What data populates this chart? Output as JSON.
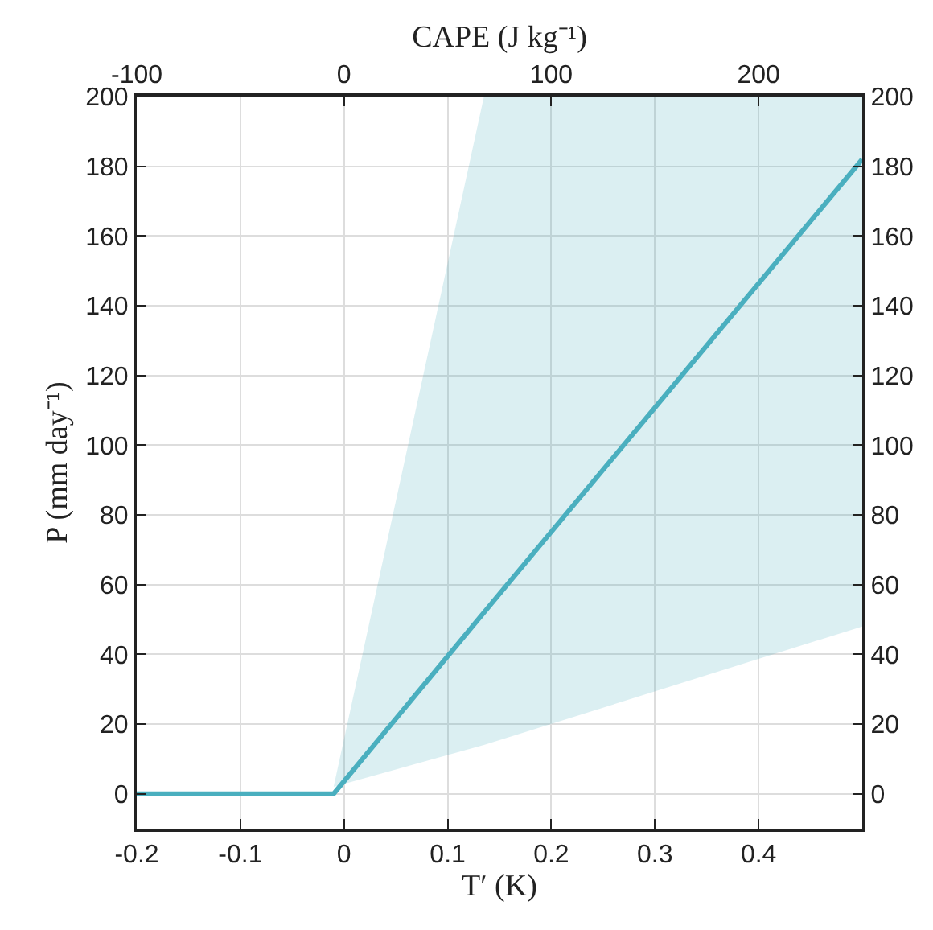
{
  "chart_data": {
    "type": "line",
    "xlabel": "T′ (K)",
    "ylabel": "P (mm day⁻¹)",
    "x2label": "CAPE (J kg⁻¹)",
    "series": [
      {
        "color": "#4aafbf",
        "x": [
          -0.2,
          -0.01,
          0.135,
          0.5
        ],
        "values": [
          0,
          0,
          52,
          182
        ],
        "lower": [
          null,
          2,
          14,
          48
        ],
        "upper": [
          null,
          2,
          200,
          200
        ]
      }
    ],
    "xlim": [
      -0.2,
      0.5
    ],
    "xticks": [
      {
        "value": -0.2,
        "label": "-0.2"
      },
      {
        "value": -0.1,
        "label": "-0.1"
      },
      0,
      0.1,
      0.2,
      0.3,
      0.4
    ],
    "x2lim": [
      -100,
      250
    ],
    "x2ticks": [
      {
        "value": -100,
        "label": "-100"
      },
      0,
      100,
      200
    ],
    "ylim": [
      -10,
      200
    ],
    "yticks": [
      0,
      20,
      40,
      60,
      80,
      100,
      120,
      140,
      160,
      180,
      200
    ],
    "y2lim": [
      -10,
      200
    ],
    "y2ticks": [
      0,
      20,
      40,
      60,
      80,
      100,
      120,
      140,
      160,
      180,
      200
    ],
    "grid": true,
    "marker": "none",
    "line_style": "solid"
  }
}
